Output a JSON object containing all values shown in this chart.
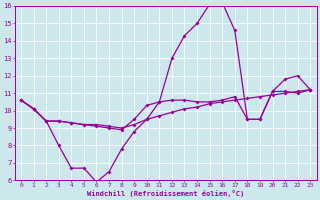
{
  "xlabel": "Windchill (Refroidissement éolien,°C)",
  "bg_color": "#cce8ec",
  "line_color": "#990099",
  "grid_color": "#ffffff",
  "xmin": 0,
  "xmax": 23,
  "ymin": 6,
  "ymax": 16,
  "line1": [
    10.6,
    10.1,
    9.4,
    8.0,
    6.7,
    6.7,
    5.9,
    6.5,
    7.8,
    8.8,
    9.5,
    10.5,
    13.0,
    14.3,
    15.0,
    16.1,
    16.2,
    14.6,
    9.5,
    9.5,
    11.1,
    11.8,
    12.0,
    11.2
  ],
  "line2": [
    10.6,
    10.1,
    9.4,
    9.4,
    9.3,
    9.2,
    9.1,
    9.0,
    8.9,
    9.5,
    10.3,
    10.5,
    10.6,
    10.6,
    10.5,
    10.5,
    10.6,
    10.8,
    9.5,
    9.5,
    11.1,
    11.1,
    11.0,
    11.2
  ],
  "line3": [
    10.6,
    10.1,
    9.4,
    9.4,
    9.3,
    9.2,
    9.2,
    9.1,
    9.0,
    9.2,
    9.5,
    9.7,
    9.9,
    10.1,
    10.2,
    10.4,
    10.5,
    10.6,
    10.7,
    10.8,
    10.9,
    11.0,
    11.1,
    11.2
  ]
}
